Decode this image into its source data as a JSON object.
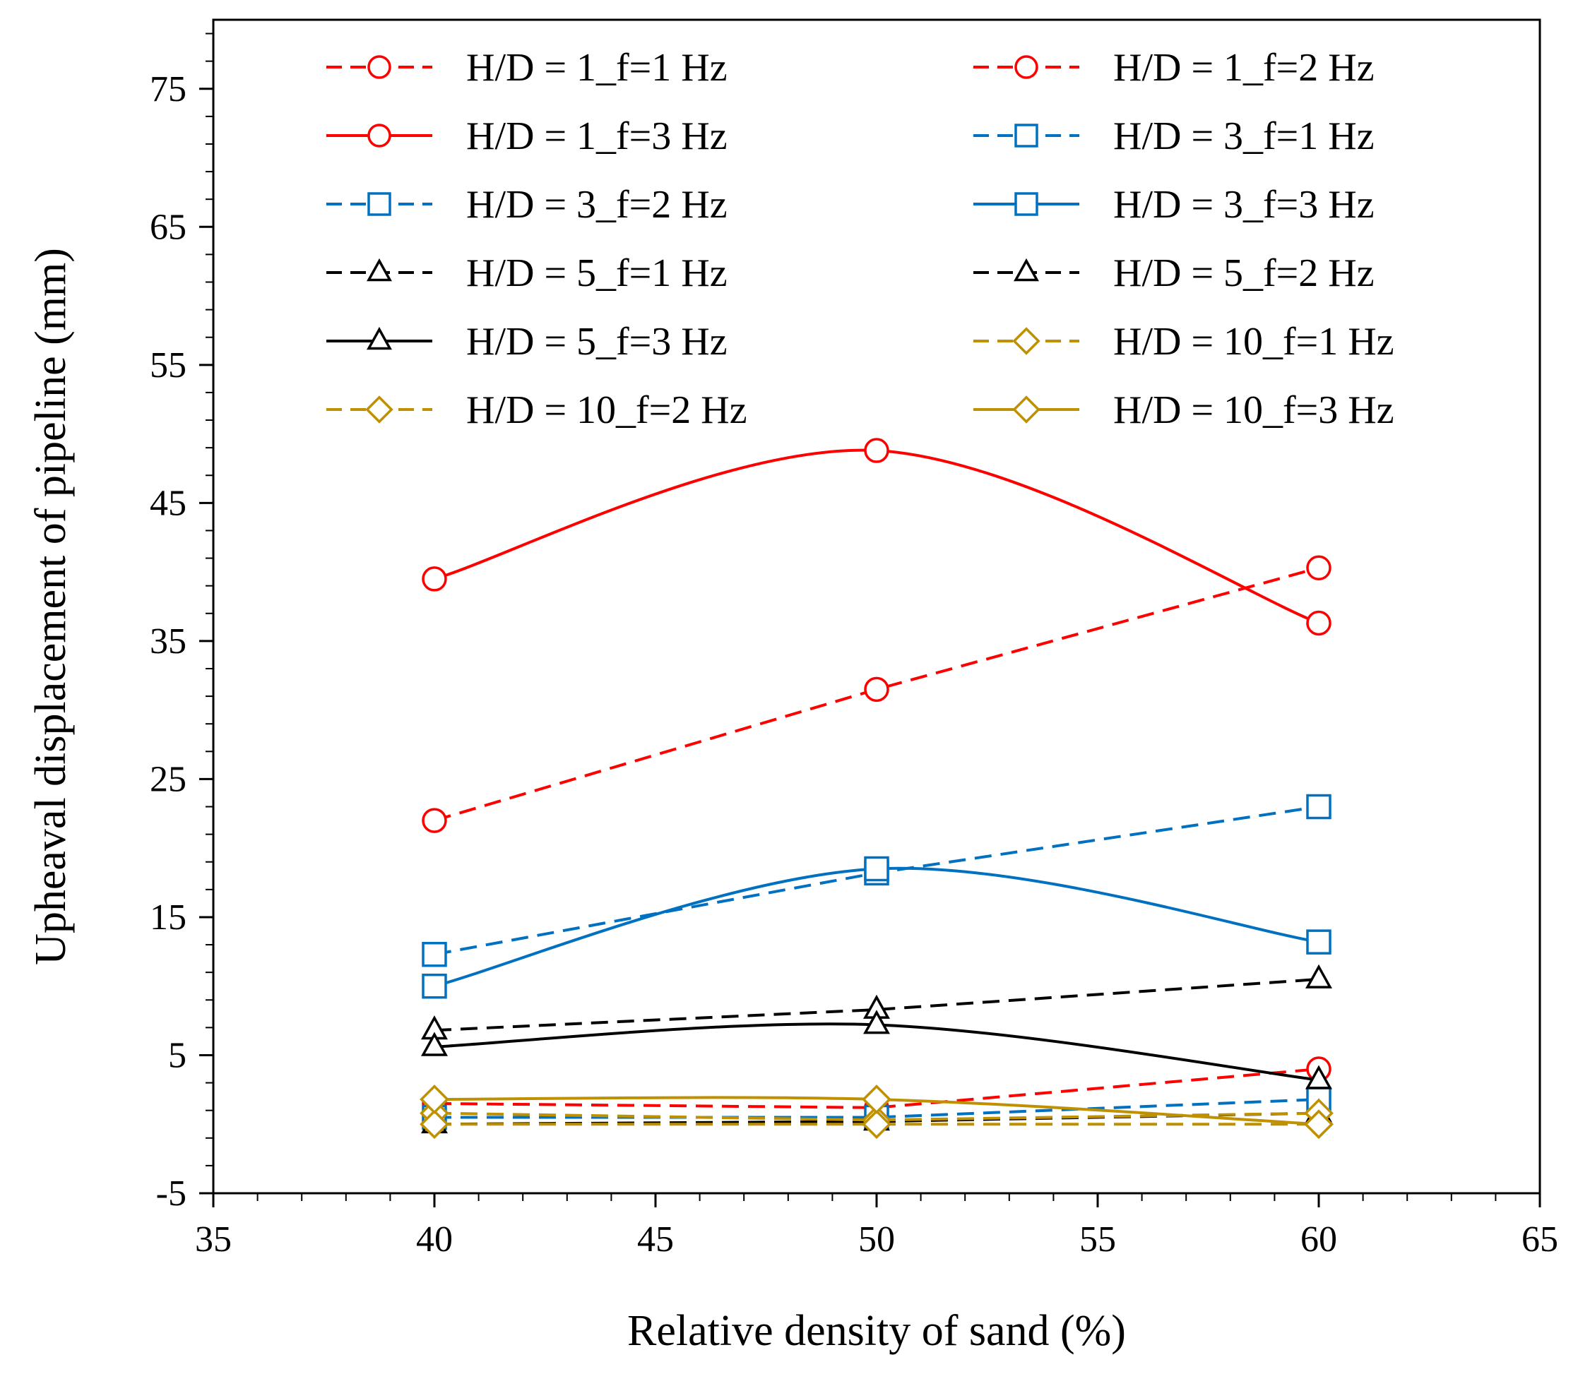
{
  "chart_data": {
    "type": "line",
    "title": "",
    "xlabel": "Relative density of sand (%)",
    "ylabel": "Upheaval displacement of pipeline (mm)",
    "xlim": [
      35,
      65
    ],
    "ylim": [
      -5,
      80
    ],
    "xticks": [
      35,
      40,
      45,
      50,
      55,
      60,
      65
    ],
    "yticks": [
      -5,
      5,
      15,
      25,
      35,
      45,
      55,
      65,
      75
    ],
    "grid": false,
    "legend_position": "top",
    "legend_columns": 2,
    "x": [
      40,
      50,
      60
    ],
    "series": [
      {
        "name": "H/D = 1_f=1 Hz",
        "values": [
          1.5,
          1.2,
          4.0
        ],
        "color": "#ff0000",
        "dash": "dashed",
        "marker": "circle",
        "smooth": false
      },
      {
        "name": "H/D = 1_f=2 Hz",
        "values": [
          22.0,
          31.5,
          40.3
        ],
        "color": "#ff0000",
        "dash": "dashed",
        "marker": "circle",
        "smooth": false
      },
      {
        "name": "H/D = 1_f=3 Hz",
        "values": [
          39.5,
          48.8,
          36.3
        ],
        "color": "#ff0000",
        "dash": "solid",
        "marker": "circle",
        "smooth": true
      },
      {
        "name": "H/D = 3_f=1 Hz",
        "values": [
          0.5,
          0.5,
          1.8
        ],
        "color": "#0070c0",
        "dash": "dashed",
        "marker": "square",
        "smooth": false
      },
      {
        "name": "H/D = 3_f=2 Hz",
        "values": [
          12.3,
          18.2,
          23.0
        ],
        "color": "#0070c0",
        "dash": "dashed",
        "marker": "square",
        "smooth": false
      },
      {
        "name": "H/D = 3_f=3 Hz",
        "values": [
          10.0,
          18.5,
          13.2
        ],
        "color": "#0070c0",
        "dash": "solid",
        "marker": "square",
        "smooth": true
      },
      {
        "name": "H/D = 5_f=1 Hz",
        "values": [
          0.0,
          0.2,
          0.8
        ],
        "color": "#000000",
        "dash": "dashed",
        "marker": "triangle",
        "smooth": false
      },
      {
        "name": "H/D = 5_f=2 Hz",
        "values": [
          6.8,
          8.3,
          10.5
        ],
        "color": "#000000",
        "dash": "dashed",
        "marker": "triangle",
        "smooth": false
      },
      {
        "name": "H/D = 5_f=3 Hz",
        "values": [
          5.6,
          7.2,
          3.2
        ],
        "color": "#000000",
        "dash": "solid",
        "marker": "triangle",
        "smooth": true
      },
      {
        "name": "H/D = 10_f=1 Hz",
        "values": [
          0.8,
          0.3,
          0.8
        ],
        "color": "#bf9000",
        "dash": "dashed",
        "marker": "diamond",
        "smooth": false
      },
      {
        "name": "H/D = 10_f=2 Hz",
        "values": [
          0.0,
          0.0,
          0.0
        ],
        "color": "#bf9000",
        "dash": "dashed",
        "marker": "diamond",
        "smooth": false
      },
      {
        "name": "H/D = 10_f=3 Hz",
        "values": [
          1.8,
          1.8,
          0.0
        ],
        "color": "#bf9000",
        "dash": "solid",
        "marker": "diamond",
        "smooth": true
      }
    ]
  }
}
